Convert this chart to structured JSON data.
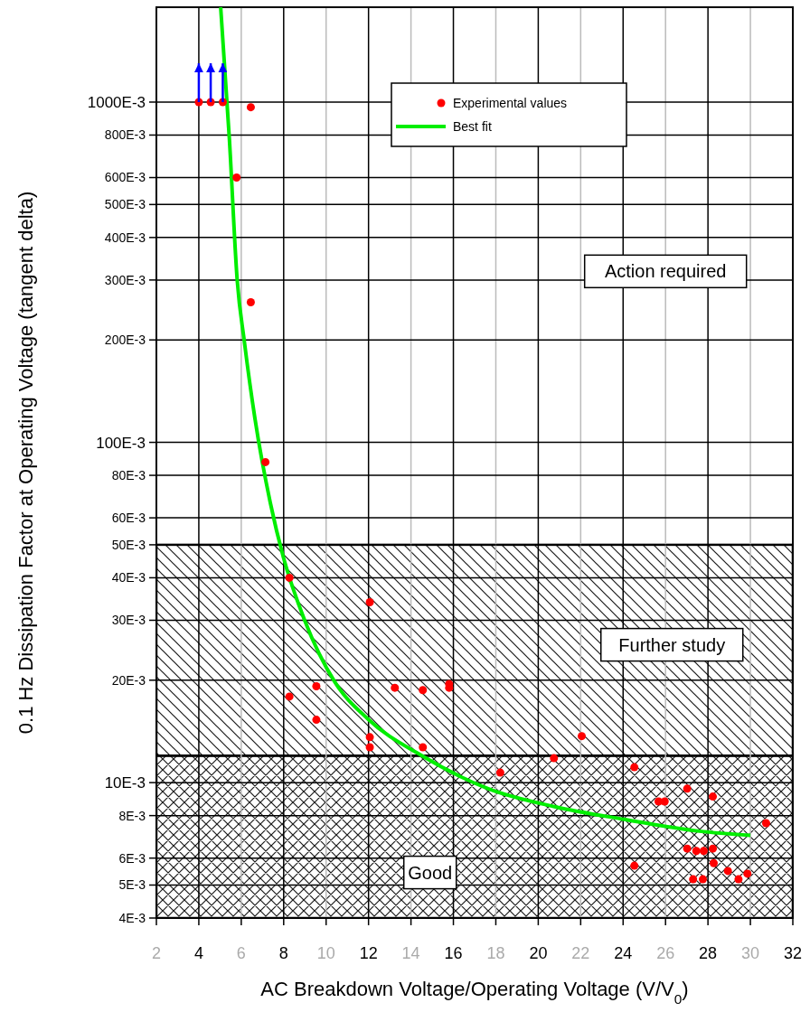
{
  "chart_data": {
    "type": "scatter",
    "xlabel": "AC Breakdown Voltage/Operating Voltage (V/V$_{0}$)",
    "ylabel": "0.1 Hz Dissipation Factor at Operating Voltage (tangent delta)",
    "log": "y",
    "grid": true,
    "legend": "top",
    "line_style": "solid",
    "annotations": [
      "Action required"
    ],
    "xlim": [
      2,
      32
    ],
    "xticks": [
      2,
      4,
      6,
      8,
      10,
      12,
      14,
      16,
      18,
      20,
      22,
      24,
      26,
      28,
      30,
      32
    ],
    "ylim": [
      0.004,
      1.9
    ],
    "yticks": [
      {
        "value": 0.004,
        "label": "4E-3"
      },
      {
        "value": 0.005,
        "label": "5E-3"
      },
      {
        "value": 0.006,
        "label": "6E-3"
      },
      {
        "value": 0.008,
        "label": "8E-3"
      },
      {
        "value": 0.01,
        "label": "10E-3"
      },
      {
        "value": 0.02,
        "label": "20E-3"
      },
      {
        "value": 0.03,
        "label": "30E-3"
      },
      {
        "value": 0.04,
        "label": "40E-3"
      },
      {
        "value": 0.05,
        "label": "50E-3"
      },
      {
        "value": 0.06,
        "label": "60E-3"
      },
      {
        "value": 0.08,
        "label": "80E-3"
      },
      {
        "value": 0.1,
        "label": "100E-3"
      },
      {
        "value": 0.2,
        "label": "200E-3"
      },
      {
        "value": 0.3,
        "label": "300E-3"
      },
      {
        "value": 0.4,
        "label": "400E-3"
      },
      {
        "value": 0.5,
        "label": "500E-3"
      },
      {
        "value": 0.6,
        "label": "600E-3"
      },
      {
        "value": 0.8,
        "label": "800E-3"
      },
      {
        "value": 1,
        "label": "1000E-3"
      }
    ],
    "bands": [
      {
        "axis": "y",
        "from": 0.012,
        "to": 0.05,
        "label": "Further study",
        "color": "#000000"
      },
      {
        "axis": "y",
        "from": 0.004,
        "to": 0.012,
        "label": "Good",
        "color": "#000000"
      }
    ],
    "series": [
      {
        "name": "Experimental values",
        "marker": "circle",
        "color": "#ff0000",
        "x": [
          4,
          4.56,
          5.13,
          6.45,
          5.78,
          6.45,
          7.14,
          8.27,
          12.06,
          8.27,
          9.54,
          9.54,
          12.06,
          12.06,
          13.24,
          14.56,
          15.8,
          15.8,
          14.56,
          22.05,
          20.74,
          18.21,
          24.53,
          27.02,
          28.23,
          25.67,
          25.96,
          30.74,
          27.02,
          27.45,
          27.8,
          28.23,
          28.27,
          24.53,
          28.94,
          29.44,
          29.86,
          27.3,
          27.76
        ],
        "values": [
          1,
          1,
          1,
          0.966,
          0.6,
          0.258,
          0.0875,
          0.04,
          0.0339,
          0.0179,
          0.0192,
          0.0153,
          0.0136,
          0.0127,
          0.019,
          0.0187,
          0.0195,
          0.019,
          0.0127,
          0.0137,
          0.0118,
          0.0107,
          0.0111,
          0.0096,
          0.0091,
          0.0088,
          0.0088,
          0.0076,
          0.0064,
          0.0063,
          0.0063,
          0.0064,
          0.0058,
          0.0057,
          0.0055,
          0.0052,
          0.0054,
          0.0052,
          0.0052
        ],
        "errors": [
          [
            1,
            1.3
          ],
          [
            1,
            1.3
          ],
          [
            1,
            1.3
          ],
          null,
          null,
          null,
          null,
          null,
          null,
          null,
          null,
          null,
          null,
          null,
          null,
          null,
          null,
          null,
          null,
          null,
          null,
          null,
          null,
          null,
          null,
          null,
          null,
          null,
          null,
          null,
          null,
          null,
          null,
          null,
          null,
          null,
          null,
          null,
          null
        ]
      },
      {
        "name": "Best fit",
        "type": "line",
        "color": "#00ee00",
        "x": [
          5.03,
          5.44,
          5.81,
          6.15,
          6.65,
          7.37,
          7.98,
          8.98,
          10.4,
          11.96,
          14.51,
          17.64,
          20.77,
          24.04,
          27.59,
          30
        ],
        "values": [
          1.9,
          0.78,
          0.299,
          0.197,
          0.117,
          0.0664,
          0.0461,
          0.0301,
          0.0198,
          0.0154,
          0.012,
          0.0096,
          0.0085,
          0.0078,
          0.0072,
          0.007
        ]
      }
    ]
  }
}
